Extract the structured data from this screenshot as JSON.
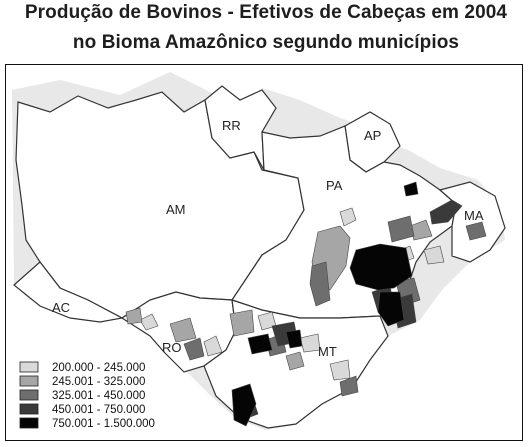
{
  "title": {
    "line1": "Produção de Bovinos - Efetivos de Cabeças em 2004",
    "line2": "no Bioma Amazônico segundo municípios"
  },
  "states": [
    "RR",
    "AP",
    "PA",
    "AM",
    "MA",
    "AC",
    "RO",
    "MT"
  ],
  "legend": [
    {
      "label": "200.000 - 245.000",
      "color": "#d9d9d9"
    },
    {
      "label": "245.001 - 325.000",
      "color": "#a6a6a6"
    },
    {
      "label": "325.001 - 450.000",
      "color": "#6e6e6e"
    },
    {
      "label": "450.001 - 750.000",
      "color": "#3a3a3a"
    },
    {
      "label": "750.001 - 1.500.000",
      "color": "#050505"
    }
  ]
}
